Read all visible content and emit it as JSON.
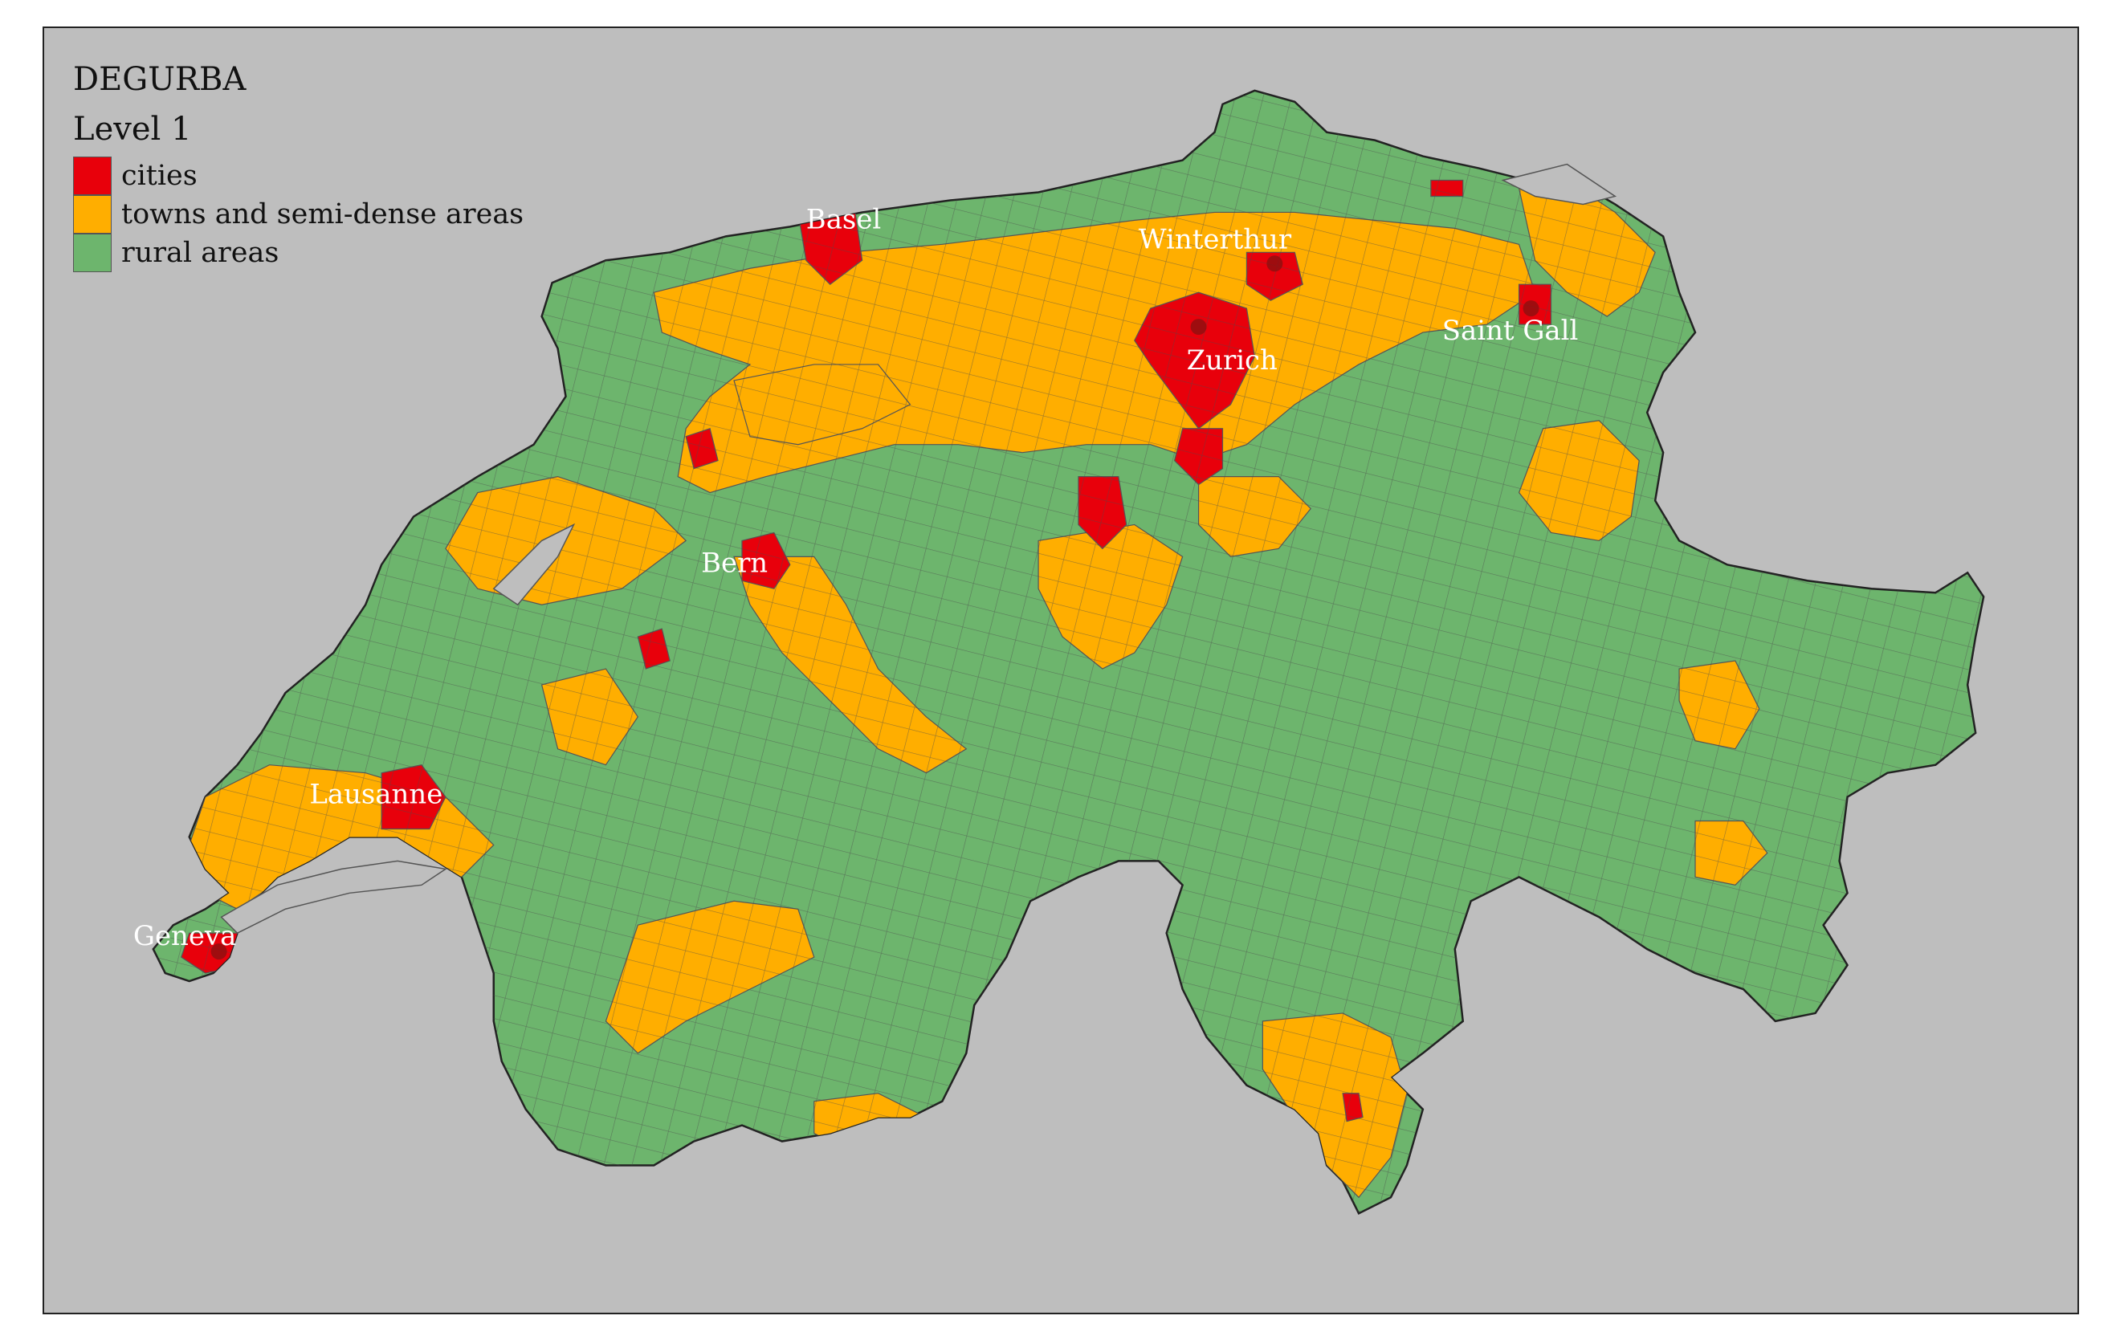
{
  "legend": {
    "title": "DEGURBA",
    "subtitle": "Level 1",
    "entries": [
      {
        "label": "cities",
        "color": "#e8000b"
      },
      {
        "label": "towns and semi-dense areas",
        "color": "#ffae00"
      },
      {
        "label": "rural areas",
        "color": "#6db56d"
      }
    ]
  },
  "colors": {
    "background": "#bebebe",
    "cities": "#e8000b",
    "towns": "#ffae00",
    "rural": "#6db56d",
    "borders": "#555555"
  },
  "cities": [
    {
      "name": "Basel"
    },
    {
      "name": "Winterthur"
    },
    {
      "name": "Zurich"
    },
    {
      "name": "Saint Gall"
    },
    {
      "name": "Bern"
    },
    {
      "name": "Lausanne"
    },
    {
      "name": "Geneva"
    }
  ]
}
